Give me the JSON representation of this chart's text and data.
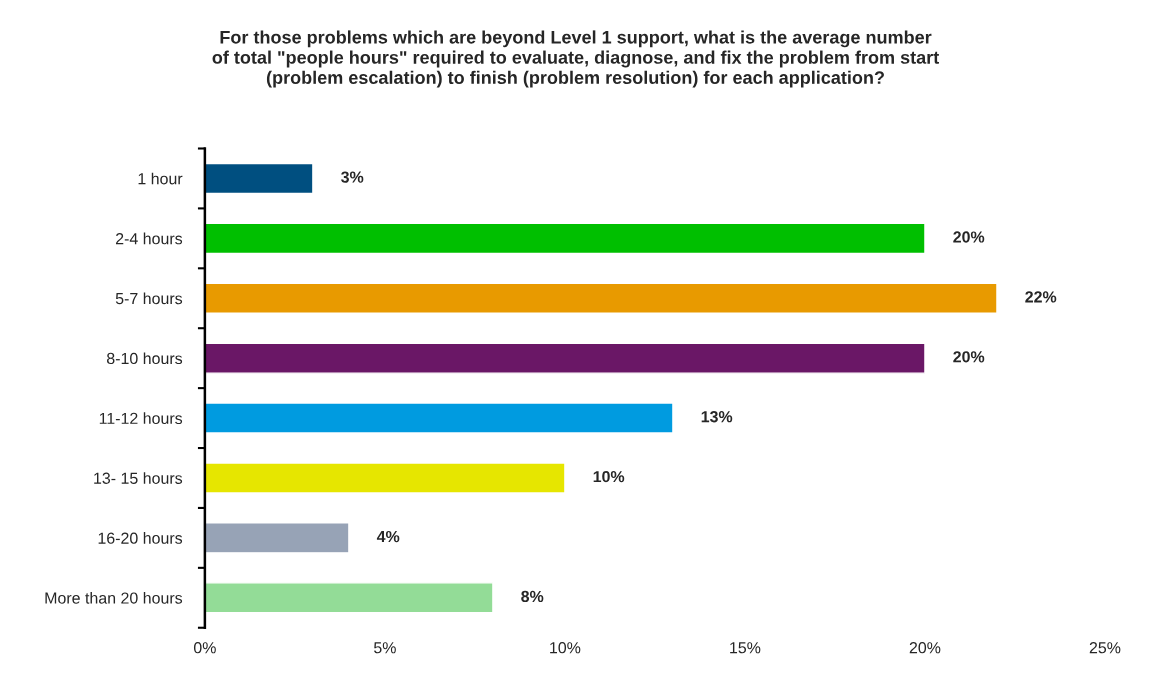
{
  "chart_data": {
    "type": "bar",
    "orientation": "horizontal",
    "title": "For those problems which are beyond Level 1 support, what is the average number\nof total \"people hours\" required to evaluate, diagnose, and fix the problem from start\n(problem escalation) to finish (problem resolution) for each application?",
    "categories": [
      "1 hour",
      "2-4 hours",
      "5-7 hours",
      "8-10 hours",
      "11-12 hours",
      "13- 15 hours",
      "16-20 hours",
      "More than 20 hours"
    ],
    "values": [
      3,
      20,
      22,
      20,
      13,
      10,
      4,
      8
    ],
    "colors": [
      "#004f80",
      "#00bf00",
      "#e89a00",
      "#6a1766",
      "#009be0",
      "#e6e600",
      "#97a3b6",
      "#93dc97"
    ],
    "value_labels": [
      "3%",
      "20%",
      "22%",
      "20%",
      "13%",
      "10%",
      "4%",
      "8%"
    ],
    "xlim": [
      0,
      25
    ],
    "xticks": [
      {
        "value": 0,
        "label": "0%"
      },
      {
        "value": 5,
        "label": "5%"
      },
      {
        "value": 10,
        "label": "10%"
      },
      {
        "value": 15,
        "label": "15%"
      },
      {
        "value": 20,
        "label": "20%"
      },
      {
        "value": 25,
        "label": "25%"
      }
    ],
    "grid": false
  }
}
